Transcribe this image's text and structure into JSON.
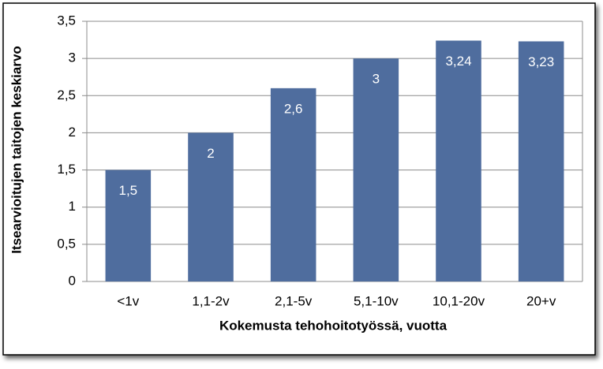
{
  "chart_data": {
    "type": "bar",
    "x_label": "Kokemusta tehohoitotyössä, vuotta",
    "y_label": "Itsearvioitujen taitojen keskiarvo",
    "categories": [
      "<1v",
      "1,1-2v",
      "2,1-5v",
      "5,1-10v",
      "10,1-20v",
      "20+v"
    ],
    "values": [
      1.5,
      2,
      2.6,
      3,
      3.24,
      3.23
    ],
    "value_labels": [
      "1,5",
      "2",
      "2,6",
      "3",
      "3,24",
      "3,23"
    ],
    "color": "#4f6d9e",
    "ylim": [
      0,
      3.5
    ],
    "yticks": [
      0,
      {
        "value": 0.5,
        "label": "0,5"
      },
      1,
      {
        "value": 1.5,
        "label": "1,5"
      },
      2,
      {
        "value": 2.5,
        "label": "2,5"
      },
      3,
      {
        "value": 3.5,
        "label": "3,5"
      }
    ],
    "grid": true
  }
}
